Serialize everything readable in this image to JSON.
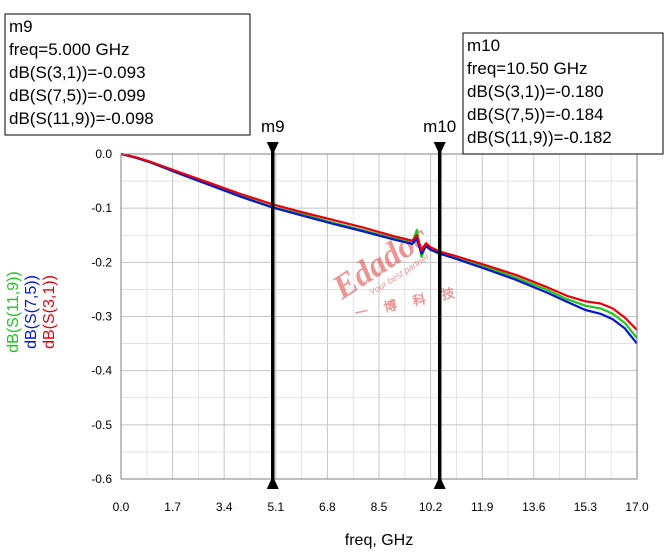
{
  "chart_data": {
    "type": "line",
    "xlabel": "freq, GHz",
    "x_ticks": [
      "0.0",
      "1.7",
      "3.4",
      "5.1",
      "6.8",
      "8.5",
      "10.2",
      "11.9",
      "13.6",
      "15.3",
      "17.0"
    ],
    "y_ticks": [
      "0.0",
      "-0.1",
      "-0.2",
      "-0.3",
      "-0.4",
      "-0.5",
      "-0.6"
    ],
    "xlim": [
      0,
      17.0
    ],
    "ylim": [
      -0.6,
      0.0
    ],
    "grid": true,
    "series": [
      {
        "name": "dB(S(3,1))",
        "color": "#e8000b",
        "x": [
          0,
          0.5,
          1,
          2,
          3,
          4,
          5,
          6,
          7,
          8,
          9,
          9.6,
          9.75,
          9.9,
          10.05,
          10.2,
          10.5,
          11,
          12,
          13,
          14,
          14.7,
          15.3,
          15.8,
          16.2,
          16.6,
          17.0
        ],
        "y": [
          0,
          -0.006,
          -0.015,
          -0.035,
          -0.055,
          -0.075,
          -0.093,
          -0.108,
          -0.122,
          -0.136,
          -0.152,
          -0.16,
          -0.15,
          -0.178,
          -0.165,
          -0.172,
          -0.18,
          -0.188,
          -0.205,
          -0.223,
          -0.245,
          -0.262,
          -0.272,
          -0.276,
          -0.285,
          -0.302,
          -0.325
        ]
      },
      {
        "name": "dB(S(7,5))",
        "color": "#0015d6",
        "x": [
          0,
          0.5,
          1,
          2,
          3,
          4,
          5,
          6,
          7,
          8,
          9,
          9.6,
          9.75,
          9.9,
          10.05,
          10.2,
          10.5,
          11,
          12,
          13,
          14,
          14.7,
          15.3,
          15.8,
          16.2,
          16.6,
          17.0
        ],
        "y": [
          0,
          -0.007,
          -0.016,
          -0.038,
          -0.059,
          -0.08,
          -0.099,
          -0.114,
          -0.129,
          -0.143,
          -0.158,
          -0.166,
          -0.156,
          -0.184,
          -0.17,
          -0.177,
          -0.184,
          -0.193,
          -0.212,
          -0.232,
          -0.255,
          -0.273,
          -0.288,
          -0.295,
          -0.305,
          -0.322,
          -0.35
        ]
      },
      {
        "name": "dB(S(11,9))",
        "color": "#1ec81e",
        "x": [
          0,
          0.5,
          1,
          2,
          3,
          4,
          5,
          6,
          7,
          8,
          9,
          9.6,
          9.75,
          9.9,
          10.05,
          10.2,
          10.5,
          11,
          12,
          13,
          14,
          14.7,
          15.3,
          15.8,
          16.2,
          16.6,
          17.0
        ],
        "y": [
          0,
          -0.007,
          -0.016,
          -0.037,
          -0.058,
          -0.079,
          -0.098,
          -0.112,
          -0.127,
          -0.141,
          -0.156,
          -0.163,
          -0.14,
          -0.19,
          -0.168,
          -0.175,
          -0.182,
          -0.191,
          -0.208,
          -0.228,
          -0.25,
          -0.268,
          -0.28,
          -0.285,
          -0.295,
          -0.312,
          -0.34
        ]
      }
    ],
    "markers": [
      {
        "id": "m9",
        "x": 5.0,
        "lines": [
          "m9",
          "freq=5.000 GHz",
          "dB(S(3,1))=-0.093",
          "dB(S(7,5))=-0.099",
          "dB(S(11,9))=-0.098"
        ]
      },
      {
        "id": "m10",
        "x": 10.5,
        "lines": [
          "m10",
          "freq=10.50 GHz",
          "dB(S(3,1))=-0.180",
          "dB(S(7,5))=-0.184",
          "dB(S(11,9))=-0.182"
        ]
      }
    ],
    "watermark": {
      "text": "Edadoc",
      "subtext": "Your best partner",
      "chinese": "一 博 科 技",
      "color": "#e04040"
    }
  }
}
